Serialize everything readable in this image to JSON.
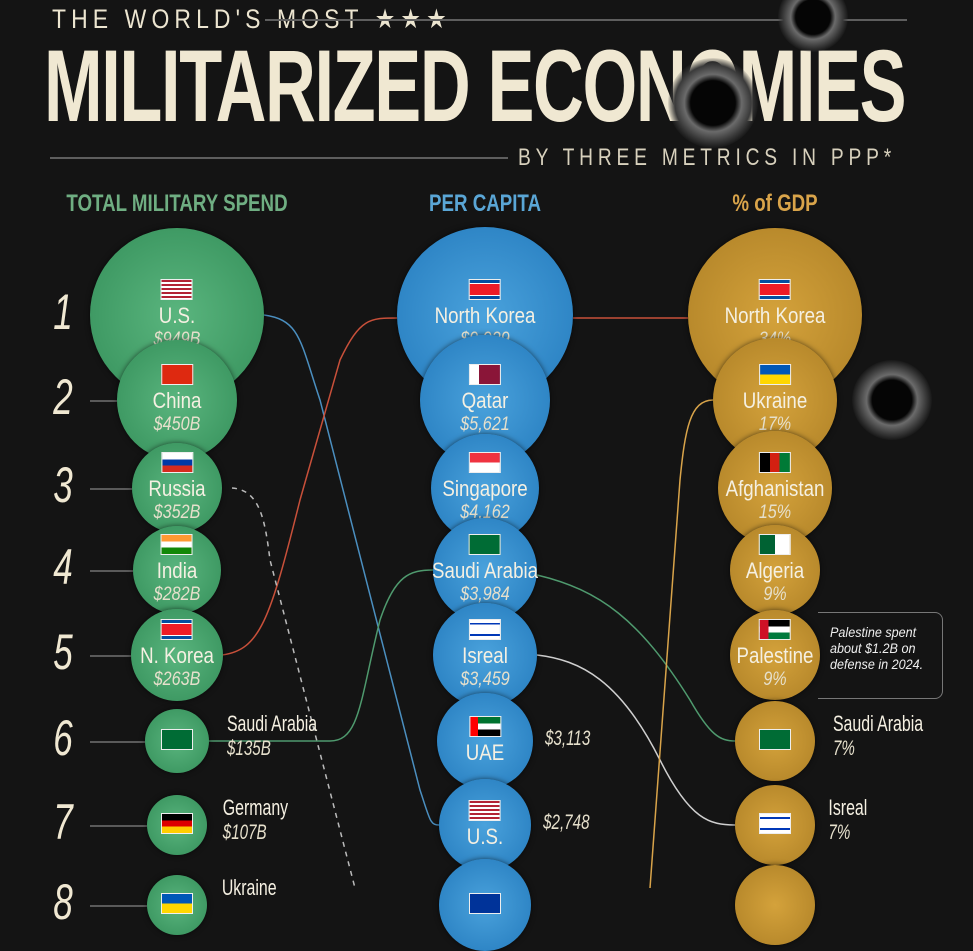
{
  "header": {
    "kicker": "THE WORLD'S MOST ★★★",
    "title": "MILITARIZED ECONOMIES",
    "subtitle": "BY THREE METRICS IN PPP*"
  },
  "colors": {
    "total": "#3f9a64",
    "per_capita": "#2f86c6",
    "gdp": "#b98a2c",
    "total_head": "#6fae82",
    "per_capita_head": "#5aa6d6",
    "gdp_head": "#d9a44a"
  },
  "ranks": [
    "1",
    "2",
    "3",
    "4",
    "5",
    "6",
    "7",
    "8"
  ],
  "note": "Palestine spent about $1.2B on defense in 2024.",
  "chart_data": {
    "type": "table",
    "title": "THE WORLD'S MOST MILITARIZED ECONOMIES",
    "subtitle": "BY THREE METRICS IN PPP*",
    "columns": [
      {
        "header": "TOTAL MILITARY SPEND",
        "rows": [
          {
            "rank": 1,
            "country": "U.S.",
            "value": "$949B",
            "flag": "us-flag"
          },
          {
            "rank": 2,
            "country": "China",
            "value": "$450B",
            "flag": "china-flag"
          },
          {
            "rank": 3,
            "country": "Russia",
            "value": "$352B",
            "flag": "russia-flag"
          },
          {
            "rank": 4,
            "country": "India",
            "value": "$282B",
            "flag": "india-flag"
          },
          {
            "rank": 5,
            "country": "N. Korea",
            "value": "$263B",
            "flag": "north-korea-flag"
          },
          {
            "rank": 6,
            "country": "Saudi Arabia",
            "value": "$135B",
            "flag": "saudi-flag"
          },
          {
            "rank": 7,
            "country": "Germany",
            "value": "$107B",
            "flag": "germany-flag"
          },
          {
            "rank": 8,
            "country": "Ukraine",
            "value": "",
            "flag": "ukraine-flag"
          }
        ]
      },
      {
        "header": "PER CAPITA",
        "rows": [
          {
            "rank": 1,
            "country": "North Korea",
            "value": "$9,929",
            "flag": "north-korea-flag"
          },
          {
            "rank": 2,
            "country": "Qatar",
            "value": "$5,621",
            "flag": "qatar-flag"
          },
          {
            "rank": 3,
            "country": "Singapore",
            "value": "$4,162",
            "flag": "singapore-flag"
          },
          {
            "rank": 4,
            "country": "Saudi Arabia",
            "value": "$3,984",
            "flag": "saudi-flag"
          },
          {
            "rank": 5,
            "country": "Isreal",
            "value": "$3,459",
            "flag": "israel-flag"
          },
          {
            "rank": 6,
            "country": "UAE",
            "value": "$3,113",
            "flag": "uae-flag"
          },
          {
            "rank": 7,
            "country": "U.S.",
            "value": "$2,748",
            "flag": "us-flag"
          },
          {
            "rank": 8,
            "country": "",
            "value": "",
            "flag": "eu-flag"
          }
        ]
      },
      {
        "header": "% of GDP",
        "rows": [
          {
            "rank": 1,
            "country": "North Korea",
            "value": "34%",
            "flag": "north-korea-flag"
          },
          {
            "rank": 2,
            "country": "Ukraine",
            "value": "17%",
            "flag": "ukraine-flag"
          },
          {
            "rank": 3,
            "country": "Afghanistan",
            "value": "15%",
            "flag": "afghanistan-flag"
          },
          {
            "rank": 4,
            "country": "Algeria",
            "value": "9%",
            "flag": "algeria-flag"
          },
          {
            "rank": 5,
            "country": "Palestine",
            "value": "9%",
            "flag": "palestine-flag"
          },
          {
            "rank": 6,
            "country": "Saudi Arabia",
            "value": "7%",
            "flag": "saudi-flag"
          },
          {
            "rank": 7,
            "country": "Isreal",
            "value": "7%",
            "flag": "israel-flag"
          },
          {
            "rank": 8,
            "country": "",
            "value": "",
            "flag": ""
          }
        ]
      }
    ]
  }
}
